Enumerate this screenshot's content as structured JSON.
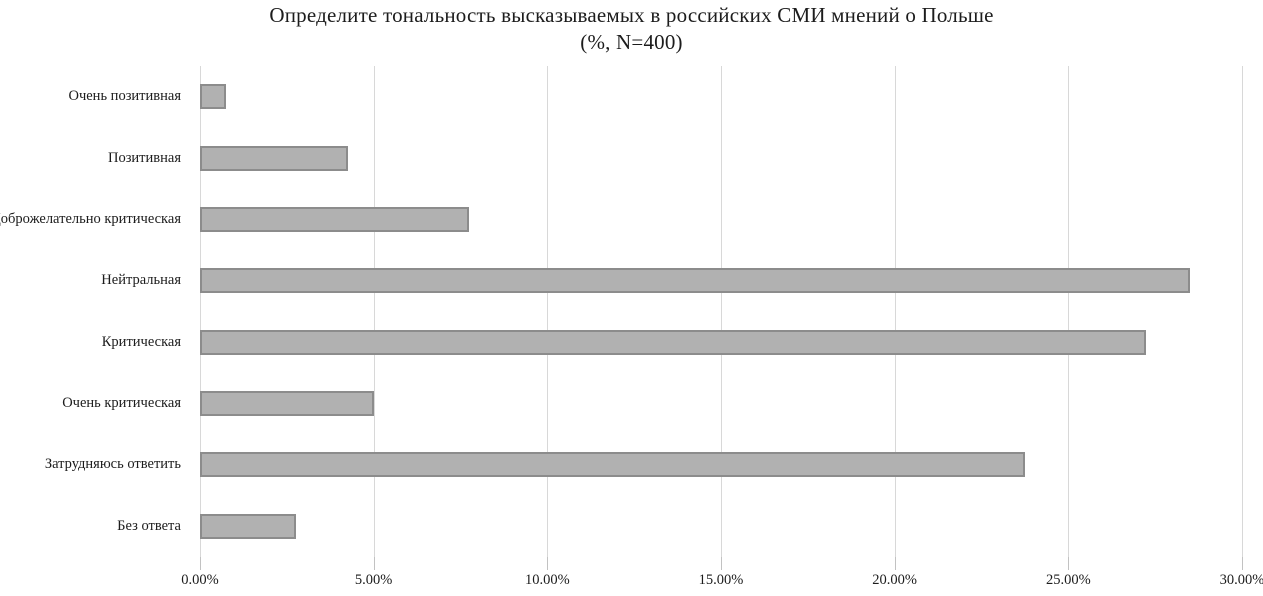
{
  "chart_data": {
    "type": "bar",
    "orientation": "horizontal",
    "title": "Определите тональность высказываемых в российских СМИ мнений о Польше",
    "subtitle": "(%, N=400)",
    "categories": [
      "Очень позитивная",
      "Позитивная",
      "Доброжелательно критическая",
      "Нейтральная",
      "Критическая",
      "Очень критическая",
      "Затрудняюсь ответить",
      "Без ответа"
    ],
    "values": [
      0.75,
      4.25,
      7.75,
      28.5,
      27.25,
      5.0,
      23.75,
      2.75
    ],
    "xlabel": "",
    "ylabel": "",
    "xlim": [
      0,
      30
    ],
    "x_ticks": [
      0,
      5,
      10,
      15,
      20,
      25,
      30
    ],
    "x_tick_labels": [
      "0.00%",
      "5.00%",
      "10.00%",
      "15.00%",
      "20.00%",
      "25.00%",
      "30.00%"
    ],
    "grid": "vertical-gridlines-on",
    "legend": "none",
    "colors": {
      "bar_fill": "#b1b1b1",
      "bar_border": "#8c8c8c",
      "gridline": "#d8d8d8",
      "tick": "#c2c2c2",
      "text": "#1c1c1c",
      "background": "#ffffff"
    }
  }
}
